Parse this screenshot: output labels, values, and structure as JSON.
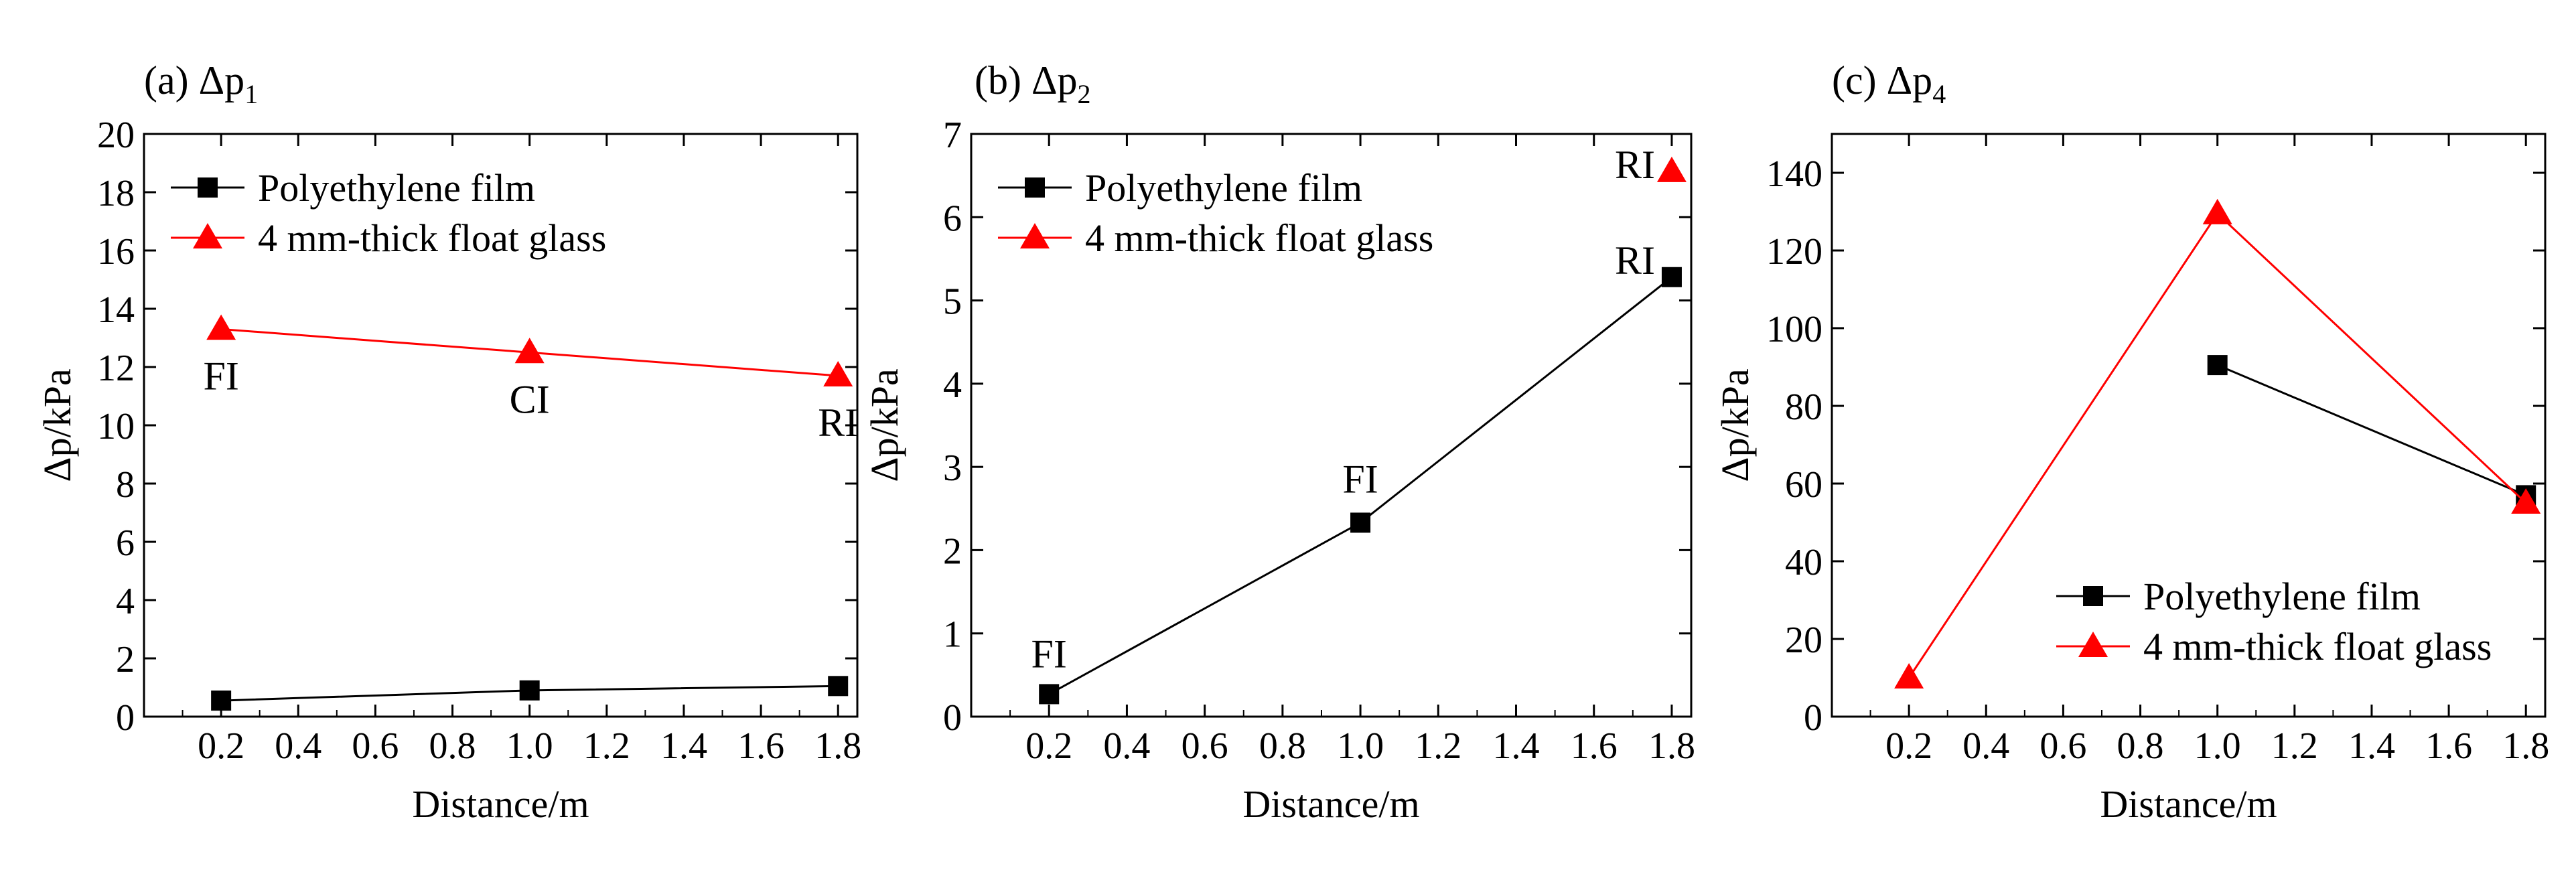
{
  "chart_data": [
    {
      "type": "line",
      "panel_label": "(a) Δp",
      "panel_sub": "1",
      "xlabel": "Distance/m",
      "ylabel": "Δp/kPa",
      "xlim": [
        0.0,
        1.85
      ],
      "ylim": [
        0,
        20
      ],
      "xticks": [
        "0.2",
        "0.4",
        "0.6",
        "0.8",
        "1.0",
        "1.2",
        "1.4",
        "1.6",
        "1.8"
      ],
      "yticks": [
        "0",
        "2",
        "4",
        "6",
        "8",
        "10",
        "12",
        "14",
        "16",
        "18",
        "20"
      ],
      "legend_position": "top-left",
      "series": [
        {
          "name": "Polyethylene film",
          "color": "#000000",
          "marker": "square",
          "x": [
            0.2,
            1.0,
            1.8
          ],
          "y": [
            0.55,
            0.9,
            1.05
          ]
        },
        {
          "name": "4 mm-thick float glass",
          "color": "#ff0000",
          "marker": "triangle",
          "x": [
            0.2,
            1.0,
            1.8
          ],
          "y": [
            13.3,
            12.5,
            11.7
          ]
        }
      ],
      "annotations": [
        {
          "text": "FI",
          "x": 0.2,
          "y": 13.3
        },
        {
          "text": "CI",
          "x": 1.0,
          "y": 12.5
        },
        {
          "text": "RI",
          "x": 1.8,
          "y": 11.7
        }
      ]
    },
    {
      "type": "line",
      "panel_label": "(b) Δp",
      "panel_sub": "2",
      "xlabel": "Distance/m",
      "ylabel": "Δp/kPa",
      "xlim": [
        0.0,
        1.85
      ],
      "ylim": [
        0,
        7
      ],
      "xticks": [
        "0.2",
        "0.4",
        "0.6",
        "0.8",
        "1.0",
        "1.2",
        "1.4",
        "1.6",
        "1.8"
      ],
      "yticks": [
        "0",
        "1",
        "2",
        "3",
        "4",
        "5",
        "6",
        "7"
      ],
      "legend_position": "top-left",
      "series": [
        {
          "name": "Polyethylene film",
          "color": "#000000",
          "marker": "square",
          "x": [
            0.2,
            1.0,
            1.8
          ],
          "y": [
            0.27,
            2.33,
            5.28
          ]
        },
        {
          "name": "4 mm-thick float glass",
          "color": "#ff0000",
          "marker": "triangle",
          "x": [
            1.8
          ],
          "y": [
            6.55
          ]
        }
      ],
      "annotations": [
        {
          "text": "FI",
          "x": 0.2,
          "y": 0.27
        },
        {
          "text": "FI",
          "x": 1.0,
          "y": 2.33
        },
        {
          "text": "RI",
          "x": 1.8,
          "y": 5.28
        },
        {
          "text": "RI",
          "x": 1.8,
          "y": 6.55
        }
      ]
    },
    {
      "type": "line",
      "panel_label": "(c) Δp",
      "panel_sub": "4",
      "xlabel": "Distance/m",
      "ylabel": "Δp/kPa",
      "xlim": [
        0.0,
        1.85
      ],
      "ylim": [
        0,
        150
      ],
      "xticks": [
        "0.2",
        "0.4",
        "0.6",
        "0.8",
        "1.0",
        "1.2",
        "1.4",
        "1.6",
        "1.8"
      ],
      "yticks": [
        "0",
        "20",
        "40",
        "60",
        "80",
        "100",
        "120",
        "140"
      ],
      "legend_position": "bottom-right",
      "series": [
        {
          "name": "Polyethylene film",
          "color": "#000000",
          "marker": "square",
          "x": [
            1.0,
            1.8
          ],
          "y": [
            90.5,
            57
          ]
        },
        {
          "name": "4 mm-thick float glass",
          "color": "#ff0000",
          "marker": "triangle",
          "x": [
            0.2,
            1.0,
            1.8
          ],
          "y": [
            10,
            129.5,
            55
          ]
        }
      ],
      "annotations": []
    }
  ]
}
